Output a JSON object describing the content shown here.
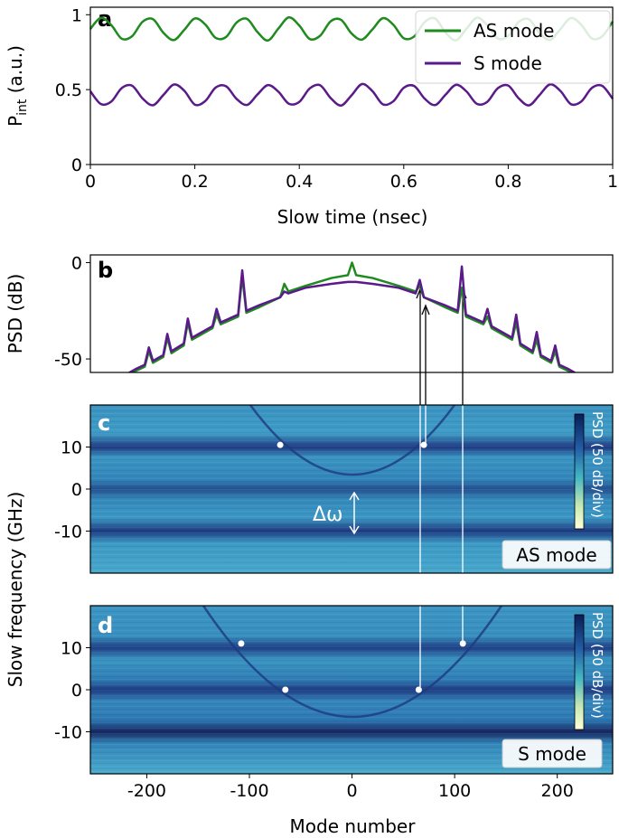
{
  "chart_data": [
    {
      "type": "line",
      "panel_label": "a",
      "xlabel": "Slow time (nsec)",
      "ylabel": "P",
      "ylabel_sub": "int",
      "ylabel_unit": " (a.u.)",
      "xlim": [
        0,
        1
      ],
      "ylim": [
        0,
        1.05
      ],
      "xticks": [
        0,
        0.2,
        0.4,
        0.6,
        0.8,
        1
      ],
      "yticks": [
        0,
        0.5,
        1
      ],
      "legend": "upper right",
      "x": [
        0,
        0.02,
        0.04,
        0.06,
        0.08,
        0.1,
        0.12,
        0.14,
        0.16,
        0.18,
        0.2,
        0.22,
        0.24,
        0.26,
        0.28,
        0.3,
        0.32,
        0.34,
        0.36,
        0.38,
        0.4,
        0.42,
        0.44,
        0.46,
        0.48,
        0.5,
        0.52,
        0.54,
        0.56,
        0.58,
        0.6,
        0.62,
        0.64,
        0.66,
        0.68,
        0.7,
        0.72,
        0.74,
        0.76,
        0.78,
        0.8,
        0.82,
        0.84,
        0.86,
        0.88,
        0.9,
        0.92,
        0.94,
        0.96,
        0.98,
        1
      ],
      "series": [
        {
          "name": "AS mode",
          "color": "#1f8a1f",
          "values": [
            0.905,
            0.979,
            0.931,
            0.84,
            0.857,
            0.953,
            0.97,
            0.879,
            0.831,
            0.9,
            0.975,
            0.935,
            0.845,
            0.852,
            0.948,
            0.972,
            0.884,
            0.828,
            0.908,
            0.982,
            0.928,
            0.838,
            0.86,
            0.956,
            0.966,
            0.875,
            0.834,
            0.902,
            0.977,
            0.933,
            0.843,
            0.855,
            0.95,
            0.975,
            0.881,
            0.829,
            0.906,
            0.98,
            0.93,
            0.841,
            0.858,
            0.952,
            0.969,
            0.878,
            0.832,
            0.904,
            0.978,
            0.932,
            0.842,
            0.856,
            0.954
          ]
        },
        {
          "name": "S mode",
          "color": "#5a1a8a",
          "values": [
            0.489,
            0.404,
            0.42,
            0.51,
            0.526,
            0.441,
            0.396,
            0.465,
            0.534,
            0.492,
            0.4,
            0.424,
            0.514,
            0.522,
            0.438,
            0.398,
            0.468,
            0.53,
            0.486,
            0.406,
            0.418,
            0.508,
            0.529,
            0.444,
            0.394,
            0.462,
            0.537,
            0.49,
            0.402,
            0.422,
            0.512,
            0.524,
            0.44,
            0.397,
            0.466,
            0.532,
            0.488,
            0.405,
            0.419,
            0.509,
            0.527,
            0.442,
            0.395,
            0.464,
            0.535,
            0.491,
            0.403,
            0.421,
            0.511,
            0.525,
            0.439
          ]
        }
      ]
    },
    {
      "type": "line",
      "panel_label": "b",
      "ylabel": "PSD (dB)",
      "xlim": [
        -255,
        254
      ],
      "ylim": [
        -57,
        4
      ],
      "yticks": [
        0,
        -50
      ],
      "x": [
        -220,
        -210,
        -202,
        -198,
        -194,
        -184,
        -180,
        -176,
        -164,
        -160,
        -156,
        -136,
        -132,
        -128,
        -111,
        -107,
        -103,
        -90,
        -70,
        -66,
        -62,
        -45,
        -20,
        -4,
        0,
        4,
        20,
        45,
        62,
        66,
        70,
        90,
        103,
        107,
        111,
        128,
        132,
        136,
        156,
        160,
        164,
        176,
        180,
        184,
        194,
        198,
        202,
        210,
        220
      ],
      "series": [
        {
          "name": "AS mode",
          "color": "#1f8a1f",
          "values": [
            -58,
            -56,
            -54,
            -46,
            -52,
            -49,
            -39,
            -47,
            -43,
            -31,
            -40,
            -34,
            -27,
            -32,
            -28,
            -7,
            -26,
            -23,
            -18,
            -11,
            -15,
            -12,
            -8,
            -6.5,
            0,
            -6.5,
            -8,
            -12,
            -15,
            -12,
            -18,
            -23,
            -26,
            -13,
            -28,
            -32,
            -28,
            -34,
            -40,
            -31,
            -43,
            -47,
            -40,
            -49,
            -52,
            -46,
            -54,
            -56,
            -58
          ]
        },
        {
          "name": "S mode",
          "color": "#5a1a8a",
          "values": [
            -58,
            -55,
            -53,
            -44,
            -51,
            -48,
            -37,
            -46,
            -42,
            -29,
            -39,
            -33,
            -24,
            -31,
            -27,
            -4,
            -25,
            -22,
            -18,
            -15,
            -16,
            -13,
            -11,
            -10,
            -10,
            -10,
            -11,
            -13,
            -16,
            -9,
            -18,
            -22,
            -25,
            -2,
            -27,
            -31,
            -24,
            -33,
            -39,
            -27,
            -42,
            -46,
            -36,
            -48,
            -51,
            -43,
            -53,
            -55,
            -58
          ]
        }
      ]
    },
    {
      "type": "scatter",
      "panel_label": "c",
      "ylabel": "Slow frequency (GHz)",
      "xlim": [
        -255,
        254
      ],
      "ylim": [
        -20,
        20
      ],
      "yticks": [
        10,
        0,
        -10
      ],
      "annotation": "Δω",
      "colorbar_label": "PSD (50 dB/div)",
      "mode_label": "AS mode",
      "x": [
        -70,
        70
      ],
      "y": [
        10.5,
        10.5
      ],
      "color": "#ffffff"
    },
    {
      "type": "scatter",
      "panel_label": "d",
      "xlabel": "Mode number",
      "xlim": [
        -255,
        254
      ],
      "ylim": [
        -20,
        20
      ],
      "yticks": [
        10,
        0,
        -10
      ],
      "xticks": [
        -200,
        -100,
        0,
        100,
        200
      ],
      "colorbar_label": "PSD (50 dB/div)",
      "mode_label": "S mode",
      "x": [
        -108,
        -65,
        65,
        108
      ],
      "y": [
        11,
        0,
        0,
        11
      ],
      "color": "#ffffff"
    }
  ]
}
